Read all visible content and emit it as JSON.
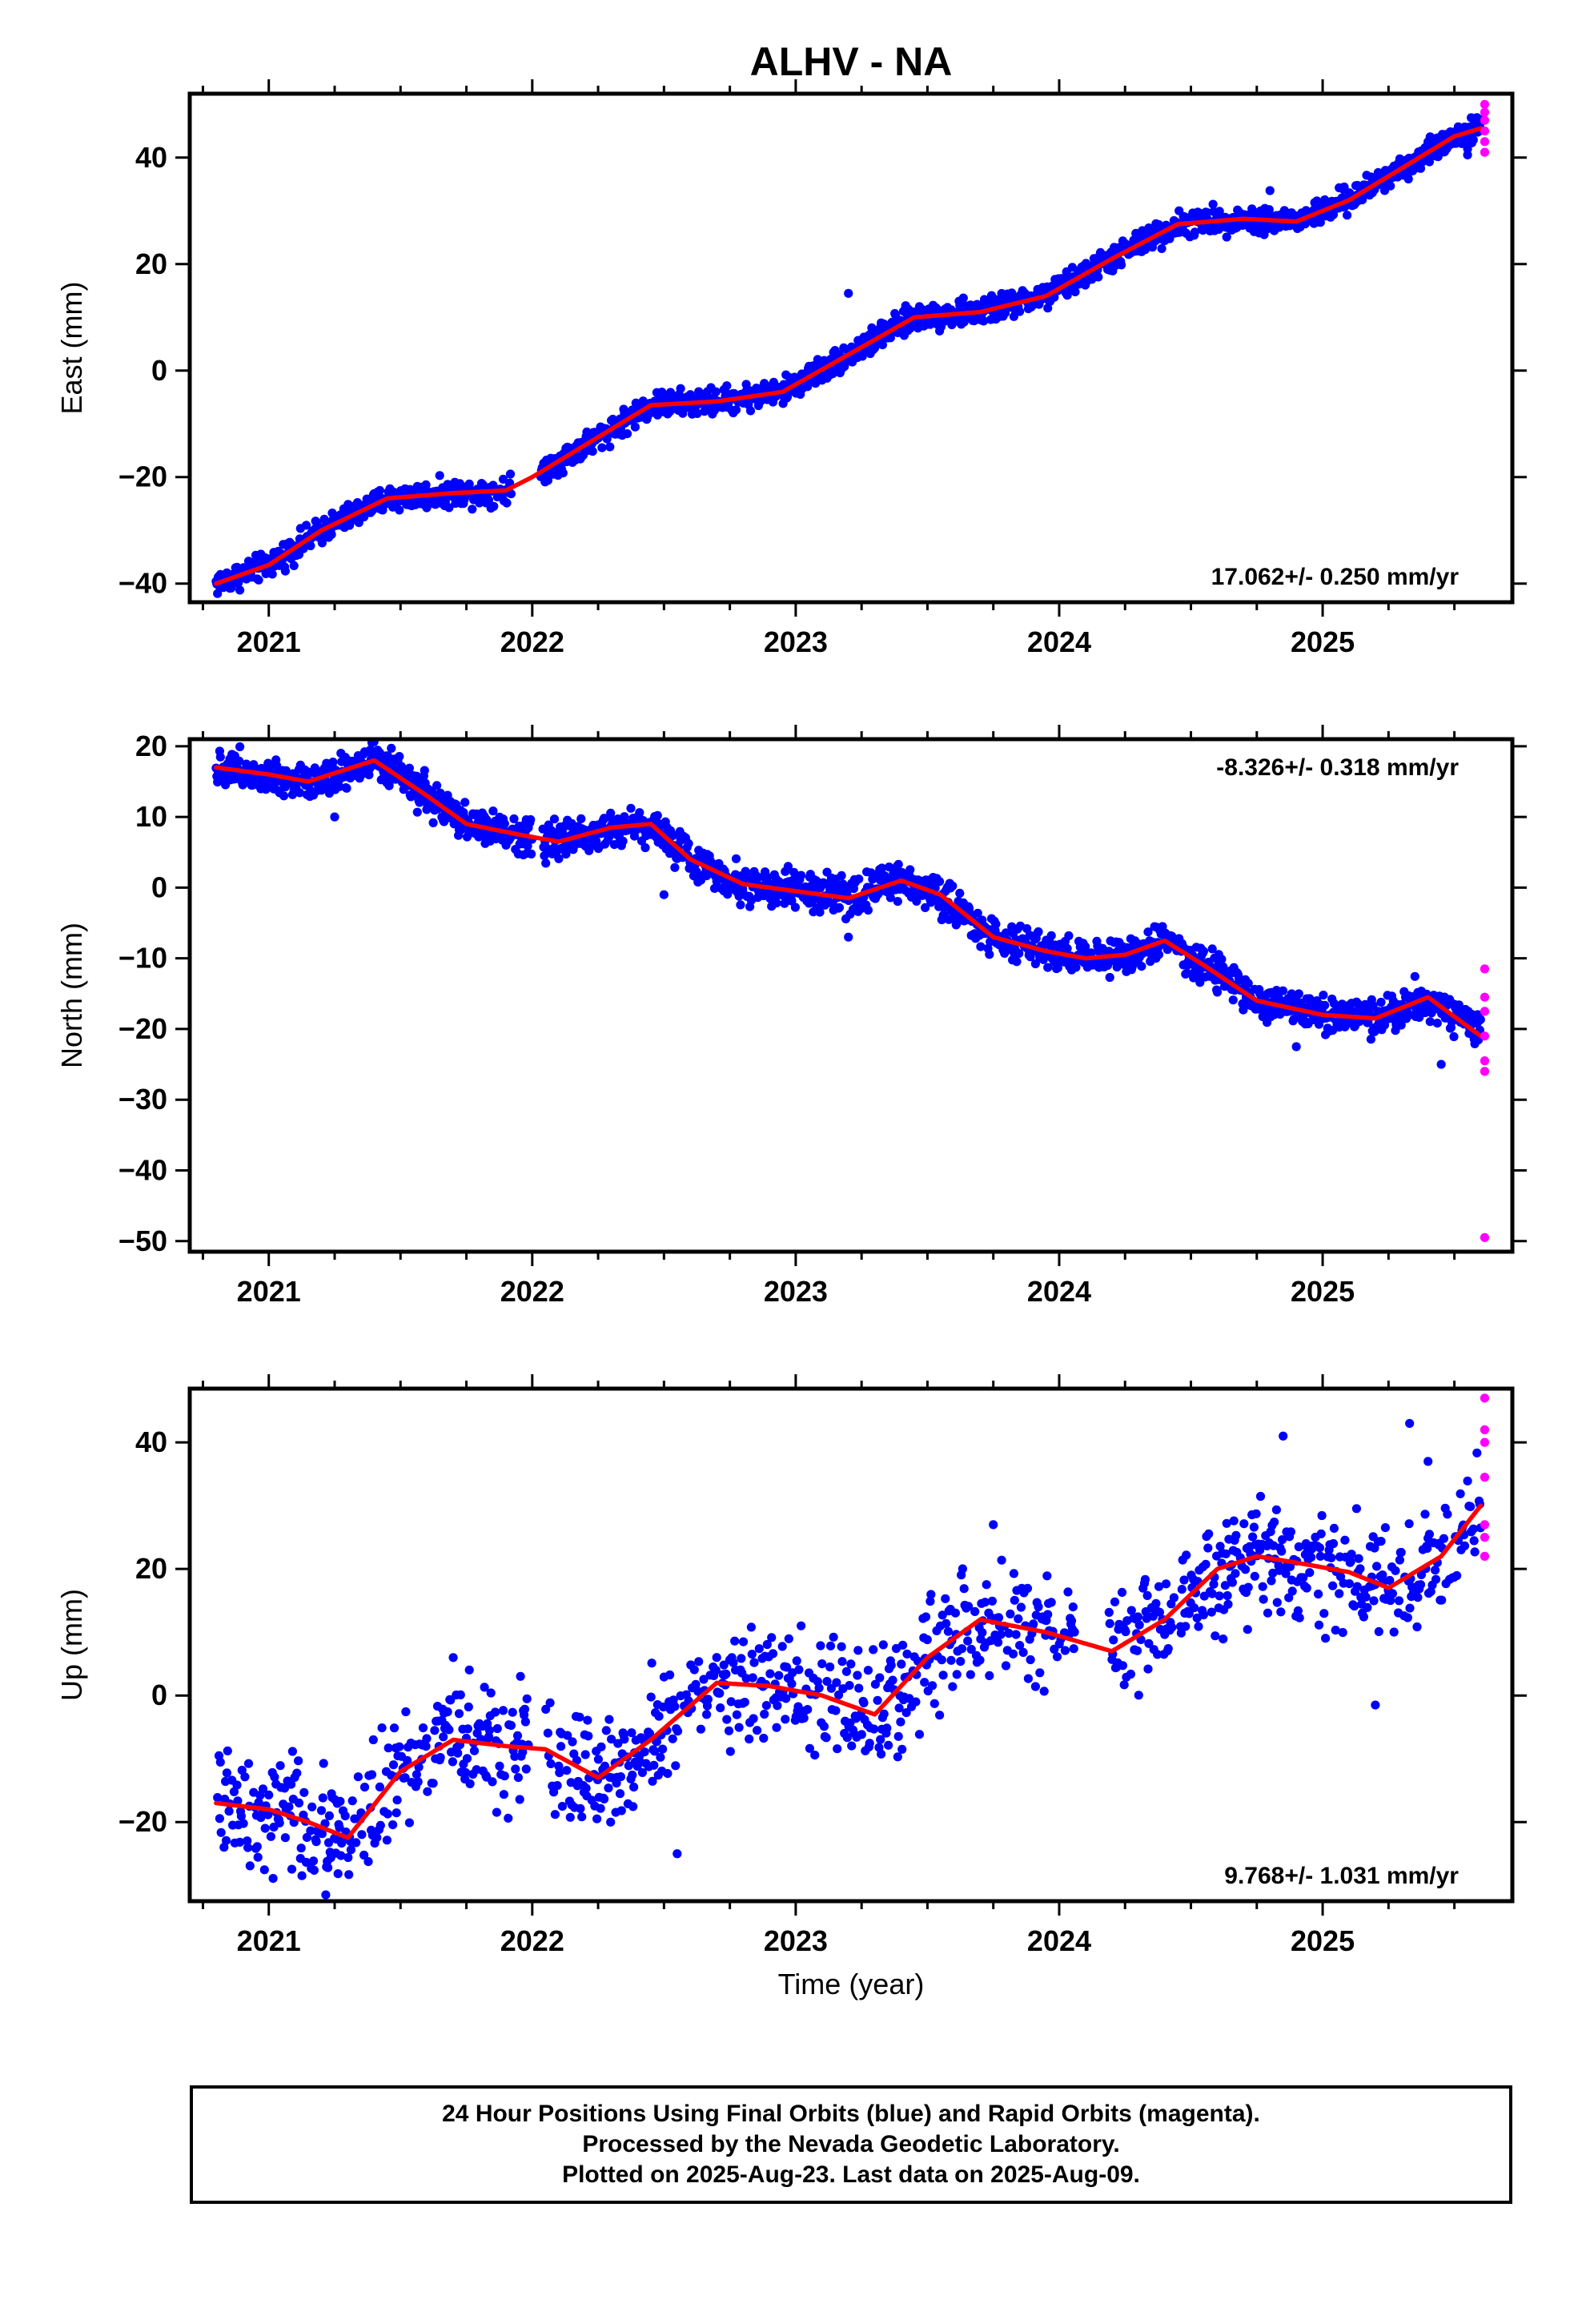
{
  "figure": {
    "title": "ALHV - NA",
    "time_label": "Time (year)",
    "caption": [
      "24 Hour Positions Using Final Orbits (blue) and Rapid Orbits (magenta).",
      "Processed by the Nevada Geodetic Laboratory.",
      "Plotted on 2025-Aug-23. Last data on 2025-Aug-09."
    ],
    "colors": {
      "final": "#0000ff",
      "rapid": "#ff00ff",
      "model": "#ff0000",
      "frame": "#000000"
    }
  },
  "chart_data": [
    {
      "type": "scatter",
      "name": "east",
      "ylabel": "East (mm)",
      "rate_label": "17.062+/- 0.250 mm/yr",
      "xlim": [
        2020.7,
        2025.72
      ],
      "ylim": [
        -43.5,
        52
      ],
      "yticks": [
        -40,
        -20,
        0,
        20,
        40
      ],
      "ytick_labels": [
        "−40",
        "−20",
        "0",
        "20",
        "40"
      ],
      "xticks": [
        2021,
        2022,
        2023,
        2024,
        2025
      ],
      "xtick_labels": [
        "2021",
        "2022",
        "2023",
        "2024",
        "2025"
      ],
      "noise": 1.2,
      "outliers": [
        [
          2022.6,
          -4.5
        ],
        [
          2023.2,
          14.5
        ],
        [
          2024.8,
          33.8
        ],
        [
          2025.55,
          40.5
        ]
      ],
      "model": {
        "x": [
          2020.8,
          2021.0,
          2021.2,
          2021.45,
          2021.7,
          2021.9,
          2022.0,
          2022.2,
          2022.45,
          2022.7,
          2022.95,
          2023.2,
          2023.45,
          2023.7,
          2023.95,
          2024.2,
          2024.45,
          2024.7,
          2024.9,
          2025.1,
          2025.3,
          2025.5,
          2025.6
        ],
        "y": [
          -40,
          -36.5,
          -30,
          -24,
          -23,
          -22.5,
          -20,
          -14,
          -6.5,
          -5.8,
          -4,
          3,
          10,
          11,
          14,
          21,
          27.5,
          28.5,
          28,
          32,
          38,
          44,
          45.5
        ]
      },
      "gaps": [
        [
          2021.92,
          2022.03
        ]
      ],
      "rapid": {
        "x": 2025.615,
        "y": [
          50,
          48.5,
          47,
          45,
          43,
          41
        ]
      }
    },
    {
      "type": "scatter",
      "name": "north",
      "ylabel": "North (mm)",
      "rate_label": "-8.326+/- 0.318 mm/yr",
      "xlim": [
        2020.7,
        2025.72
      ],
      "ylim": [
        -51.5,
        21
      ],
      "yticks": [
        -50,
        -40,
        -30,
        -20,
        -10,
        0,
        10,
        20
      ],
      "ytick_labels": [
        "−50",
        "−40",
        "−30",
        "−20",
        "−10",
        "0",
        "10",
        "20"
      ],
      "xticks": [
        2021,
        2022,
        2023,
        2024,
        2025
      ],
      "xtick_labels": [
        "2021",
        "2022",
        "2023",
        "2024",
        "2025"
      ],
      "noise": 1.3,
      "outliers": [
        [
          2021.25,
          10
        ],
        [
          2022.5,
          -1
        ],
        [
          2023.2,
          -7
        ],
        [
          2024.9,
          -22.5
        ],
        [
          2025.45,
          -25
        ]
      ],
      "model": {
        "x": [
          2020.8,
          2021.0,
          2021.15,
          2021.4,
          2021.6,
          2021.75,
          2021.95,
          2022.1,
          2022.3,
          2022.45,
          2022.6,
          2022.8,
          2023.0,
          2023.2,
          2023.4,
          2023.55,
          2023.75,
          2023.95,
          2024.1,
          2024.25,
          2024.4,
          2024.55,
          2024.75,
          2025.0,
          2025.2,
          2025.4,
          2025.6
        ],
        "y": [
          17,
          16,
          15,
          18,
          13,
          9,
          7.5,
          6.5,
          8.5,
          9,
          4,
          0.5,
          -0.5,
          -1.5,
          1,
          -1,
          -7,
          -9,
          -10,
          -9.5,
          -7.5,
          -11,
          -16,
          -18,
          -18.5,
          -15.5,
          -21
        ]
      },
      "gaps": [
        [
          2022.0,
          2022.04
        ]
      ],
      "rapid": {
        "x": 2025.615,
        "y": [
          -11.5,
          -15.5,
          -17.5,
          -21,
          -24.5,
          -26,
          -49.5
        ]
      }
    },
    {
      "type": "scatter",
      "name": "up",
      "ylabel": "Up (mm)",
      "rate_label": "9.768+/- 1.031 mm/yr",
      "xlim": [
        2020.7,
        2025.72
      ],
      "ylim": [
        -32.5,
        48.5
      ],
      "yticks": [
        -20,
        0,
        20,
        40
      ],
      "ytick_labels": [
        "−20",
        "0",
        "20",
        "40"
      ],
      "xticks": [
        2021,
        2022,
        2023,
        2024,
        2025
      ],
      "xtick_labels": [
        "2021",
        "2022",
        "2023",
        "2024",
        "2025"
      ],
      "noise": 4.5,
      "outliers": [
        [
          2021.7,
          6
        ],
        [
          2022.55,
          -25
        ],
        [
          2023.75,
          27
        ],
        [
          2024.85,
          41
        ],
        [
          2025.33,
          43
        ],
        [
          2025.2,
          -1.5
        ],
        [
          2025.4,
          37
        ]
      ],
      "model": {
        "x": [
          2020.8,
          2021.0,
          2021.15,
          2021.3,
          2021.5,
          2021.7,
          2021.9,
          2022.05,
          2022.25,
          2022.45,
          2022.7,
          2022.9,
          2023.1,
          2023.3,
          2023.5,
          2023.7,
          2023.95,
          2024.2,
          2024.4,
          2024.6,
          2024.75,
          2024.9,
          2025.1,
          2025.25,
          2025.45,
          2025.6
        ],
        "y": [
          -17,
          -18,
          -20,
          -22.5,
          -12,
          -7,
          -8,
          -8.5,
          -13,
          -7,
          2,
          1.5,
          0,
          -3,
          6,
          12,
          10,
          7,
          12,
          20,
          22,
          21,
          19.5,
          17,
          22,
          30
        ]
      },
      "gaps": [
        [
          2021.99,
          2022.05
        ],
        [
          2024.06,
          2024.18
        ]
      ],
      "rapid": {
        "x": 2025.615,
        "y": [
          47,
          42,
          40,
          34.5,
          27,
          25,
          22
        ]
      }
    }
  ]
}
